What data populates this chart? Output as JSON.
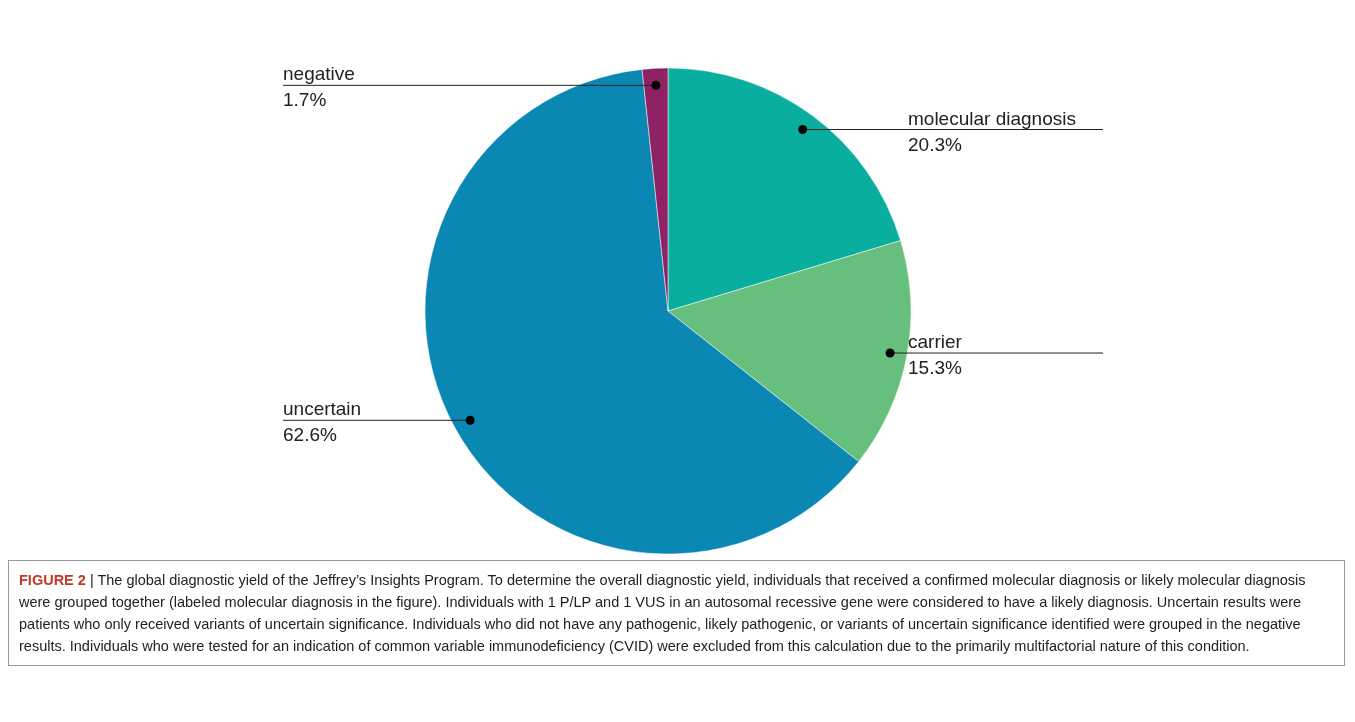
{
  "chart_data": {
    "type": "pie",
    "categories": [
      "molecular diagnosis",
      "carrier",
      "uncertain",
      "negative"
    ],
    "values": [
      20.3,
      15.3,
      62.6,
      1.7
    ],
    "value_labels": [
      "20.3%",
      "15.3%",
      "62.6%",
      "1.7%"
    ],
    "colors": [
      "#0aae9f",
      "#66bf7d",
      "#0a88b3",
      "#8e2265"
    ],
    "annotations": [
      "FIGURE 2 | The global diagnostic yield of the Jeffrey’s Insights Program. To determine the overall diagnostic yield, individuals that received a confirmed molecular diagnosis or likely molecular diagnosis were grouped together (labeled molecular diagnosis in the figure). Individuals with 1 P/LP and 1 VUS in an autosomal recessive gene were considered to have a likely diagnosis. Uncertain results were patients who only received variants of uncertain significance. Individuals who did not have any pathogenic, likely pathogenic, or variants of uncertain significance identified were grouped in the negative results. Individuals who were tested for an indication of common variable immunodeficiency (CVID) were excluded from this calculation due to the primarily multifactorial nature of this condition."
    ]
  }
}
